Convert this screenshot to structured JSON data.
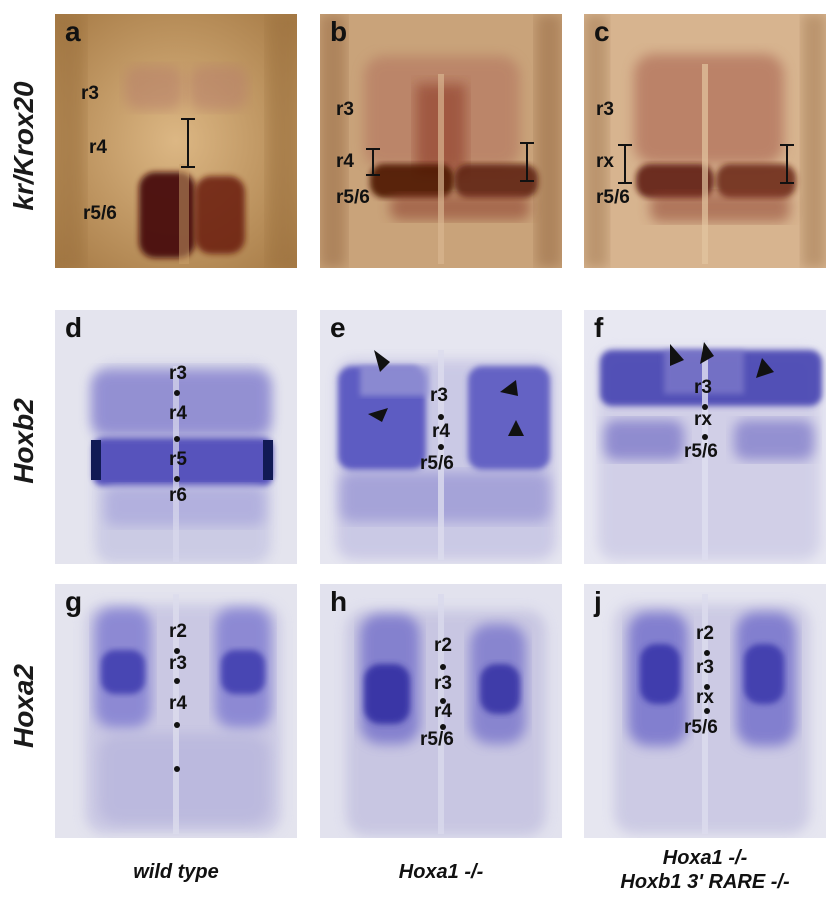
{
  "rows": [
    {
      "label": "kr/Krox20"
    },
    {
      "label": "Hoxb2"
    },
    {
      "label": "Hoxa2"
    }
  ],
  "columns": [
    {
      "label_line1": "wild type",
      "label_line2": ""
    },
    {
      "label_line1": "Hoxa1 -/-",
      "label_line2": ""
    },
    {
      "label_line1": "Hoxa1 -/-",
      "label_line2": "Hoxb1 3' RARE -/-"
    }
  ],
  "panels": {
    "a": {
      "letter": "a",
      "labels": [
        "r3",
        "r4",
        "r5/6"
      ]
    },
    "b": {
      "letter": "b",
      "labels": [
        "r3",
        "r4",
        "r5/6"
      ]
    },
    "c": {
      "letter": "c",
      "labels": [
        "r3",
        "rx",
        "r5/6"
      ]
    },
    "d": {
      "letter": "d",
      "labels": [
        "r3",
        "r4",
        "r5",
        "r6"
      ]
    },
    "e": {
      "letter": "e",
      "labels": [
        "r3",
        "r4",
        "r5/6"
      ]
    },
    "f": {
      "letter": "f",
      "labels": [
        "r3",
        "rx",
        "r5/6"
      ]
    },
    "g": {
      "letter": "g",
      "labels": [
        "r2",
        "r3",
        "r4"
      ]
    },
    "h": {
      "letter": "h",
      "labels": [
        "r2",
        "r3",
        "r4",
        "r5/6"
      ]
    },
    "j": {
      "letter": "j",
      "labels": [
        "r2",
        "r3",
        "rx",
        "r5/6"
      ]
    }
  },
  "colors": {
    "krox_bg": "#c9a06a",
    "krox_stain": "#5a1208",
    "hox_bg": "#e3e3ee",
    "hox_stain": "#3a3aa8"
  }
}
